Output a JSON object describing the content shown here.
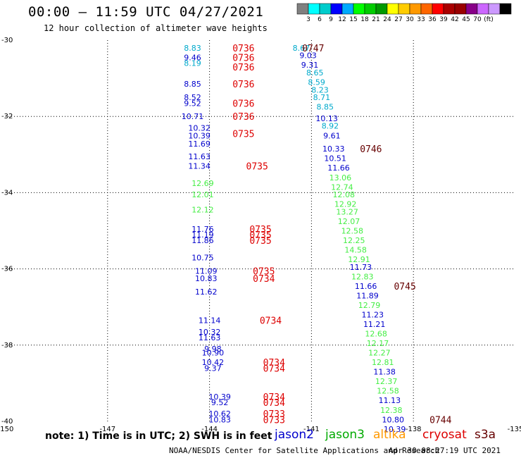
{
  "header": {
    "title": "00:00 – 11:59 UTC 04/27/2021",
    "subtitle": "12 hour collection of altimeter wave heights"
  },
  "note": "note: 1) Time is in UTC; 2) SWH is in feet",
  "satellites": [
    {
      "name": "jason2",
      "color": "#0000cc"
    },
    {
      "name": "jason3",
      "color": "#00aa00"
    },
    {
      "name": "altika",
      "color": "#ff9900"
    },
    {
      "name": "cryosat",
      "color": "#dd0000"
    },
    {
      "name": "s3a",
      "color": "#660000"
    }
  ],
  "footer": {
    "credit": "NOAA/NESDIS Center for Satellite Applications and Research",
    "timestamp": "Apr 30 08:27:19 UTC 2021"
  },
  "color_scale": {
    "colors": [
      "#808080",
      "#00ffff",
      "#00cccc",
      "#0000ff",
      "#00aaff",
      "#00ff00",
      "#00cc00",
      "#009900",
      "#ffff00",
      "#ffcc00",
      "#ff9900",
      "#ff6600",
      "#ff0000",
      "#aa0000",
      "#990000",
      "#880088",
      "#cc66ff",
      "#cc99ff",
      "#000000"
    ],
    "labels": [
      "3",
      "6",
      "9",
      "12",
      "15",
      "18",
      "21",
      "24",
      "27",
      "30",
      "33",
      "36",
      "39",
      "42",
      "45",
      "70",
      "(ft)"
    ]
  },
  "chart_data": {
    "type": "scatter",
    "xlim": [
      -150,
      -135
    ],
    "ylim": [
      -40,
      -30
    ],
    "x_ticks": [
      -150,
      -147,
      -144,
      -141,
      -138,
      -135
    ],
    "x_tick_labels": [
      "-150",
      "-147",
      "-144",
      "-141",
      "-138",
      "-135"
    ],
    "y_ticks": [
      -30,
      -32,
      -34,
      -36,
      -38,
      -40
    ],
    "y_tick_labels": [
      "-30",
      "-32",
      "-34",
      "-36",
      "-38",
      "-40"
    ],
    "value_labels": [
      {
        "x": -144.5,
        "y": -30.2,
        "text": "8.83",
        "color": "#00aacc"
      },
      {
        "x": -144.5,
        "y": -30.45,
        "text": "9.46",
        "color": "#0000cc"
      },
      {
        "x": -144.5,
        "y": -30.6,
        "text": "8.19",
        "color": "#00aacc"
      },
      {
        "x": -144.5,
        "y": -31.15,
        "text": "8.85",
        "color": "#0000cc"
      },
      {
        "x": -144.5,
        "y": -31.5,
        "text": "8.52",
        "color": "#0000cc"
      },
      {
        "x": -144.5,
        "y": -31.65,
        "text": "9.52",
        "color": "#0000cc"
      },
      {
        "x": -144.5,
        "y": -32.0,
        "text": "10.71",
        "color": "#0000cc"
      },
      {
        "x": -144.3,
        "y": -32.3,
        "text": "10.32",
        "color": "#0000cc"
      },
      {
        "x": -144.3,
        "y": -32.5,
        "text": "10.39",
        "color": "#0000cc"
      },
      {
        "x": -144.3,
        "y": -32.72,
        "text": "11.69",
        "color": "#0000cc"
      },
      {
        "x": -144.3,
        "y": -33.05,
        "text": "11.63",
        "color": "#0000cc"
      },
      {
        "x": -144.3,
        "y": -33.3,
        "text": "11.34",
        "color": "#0000cc"
      },
      {
        "x": -144.2,
        "y": -33.75,
        "text": "12.69",
        "color": "#44ee44"
      },
      {
        "x": -144.2,
        "y": -34.05,
        "text": "12.01",
        "color": "#44ee44"
      },
      {
        "x": -144.2,
        "y": -34.45,
        "text": "12.12",
        "color": "#44ee44"
      },
      {
        "x": -144.2,
        "y": -34.95,
        "text": "11.76",
        "color": "#0000cc"
      },
      {
        "x": -144.2,
        "y": -35.1,
        "text": "11.19",
        "color": "#0000cc"
      },
      {
        "x": -144.2,
        "y": -35.25,
        "text": "11.86",
        "color": "#0000cc"
      },
      {
        "x": -144.2,
        "y": -35.7,
        "text": "10.75",
        "color": "#0000cc"
      },
      {
        "x": -144.1,
        "y": -36.05,
        "text": "11.09",
        "color": "#0000cc"
      },
      {
        "x": -144.1,
        "y": -36.25,
        "text": "10.83",
        "color": "#0000cc"
      },
      {
        "x": -144.1,
        "y": -36.6,
        "text": "11.62",
        "color": "#0000cc"
      },
      {
        "x": -144.0,
        "y": -37.35,
        "text": "11.14",
        "color": "#0000cc"
      },
      {
        "x": -144.0,
        "y": -37.65,
        "text": "10.32",
        "color": "#0000cc"
      },
      {
        "x": -144.0,
        "y": -37.8,
        "text": "11.63",
        "color": "#0000cc"
      },
      {
        "x": -143.9,
        "y": -38.1,
        "text": "9.98",
        "color": "#0000cc"
      },
      {
        "x": -143.9,
        "y": -38.2,
        "text": "10.90",
        "color": "#0000cc"
      },
      {
        "x": -143.9,
        "y": -38.45,
        "text": "10.42",
        "color": "#0000cc"
      },
      {
        "x": -143.9,
        "y": -38.6,
        "text": "9.37",
        "color": "#0000cc"
      },
      {
        "x": -143.7,
        "y": -39.35,
        "text": "10.39",
        "color": "#0000cc"
      },
      {
        "x": -143.7,
        "y": -39.5,
        "text": "9.52",
        "color": "#0000cc"
      },
      {
        "x": -143.7,
        "y": -39.8,
        "text": "10.62",
        "color": "#0000cc"
      },
      {
        "x": -143.7,
        "y": -39.95,
        "text": "10.83",
        "color": "#0000cc"
      },
      {
        "x": -141.3,
        "y": -30.2,
        "text": "8.67",
        "color": "#00aacc"
      },
      {
        "x": -141.1,
        "y": -30.4,
        "text": "9.03",
        "color": "#0000cc"
      },
      {
        "x": -141.05,
        "y": -30.65,
        "text": "9.31",
        "color": "#0000cc"
      },
      {
        "x": -140.9,
        "y": -30.85,
        "text": "8.65",
        "color": "#00aacc"
      },
      {
        "x": -140.85,
        "y": -31.1,
        "text": "8.59",
        "color": "#00aacc"
      },
      {
        "x": -140.75,
        "y": -31.3,
        "text": "8.23",
        "color": "#00aacc"
      },
      {
        "x": -140.7,
        "y": -31.5,
        "text": "8.71",
        "color": "#00aacc"
      },
      {
        "x": -140.6,
        "y": -31.75,
        "text": "8.85",
        "color": "#00aacc"
      },
      {
        "x": -140.55,
        "y": -32.05,
        "text": "10.13",
        "color": "#0000cc"
      },
      {
        "x": -140.45,
        "y": -32.25,
        "text": "8.92",
        "color": "#00aacc"
      },
      {
        "x": -140.4,
        "y": -32.5,
        "text": "9.61",
        "color": "#0000cc"
      },
      {
        "x": -140.35,
        "y": -32.85,
        "text": "10.33",
        "color": "#0000cc"
      },
      {
        "x": -140.3,
        "y": -33.1,
        "text": "10.51",
        "color": "#0000cc"
      },
      {
        "x": -140.2,
        "y": -33.35,
        "text": "11.66",
        "color": "#0000cc"
      },
      {
        "x": -140.15,
        "y": -33.6,
        "text": "13.06",
        "color": "#44ee44"
      },
      {
        "x": -140.1,
        "y": -33.85,
        "text": "12.74",
        "color": "#44ee44"
      },
      {
        "x": -140.05,
        "y": -34.05,
        "text": "12.08",
        "color": "#44ee44"
      },
      {
        "x": -140.0,
        "y": -34.3,
        "text": "12.92",
        "color": "#44ee44"
      },
      {
        "x": -139.95,
        "y": -34.5,
        "text": "13.27",
        "color": "#44ee44"
      },
      {
        "x": -139.9,
        "y": -34.75,
        "text": "12.07",
        "color": "#44ee44"
      },
      {
        "x": -139.8,
        "y": -35.0,
        "text": "12.58",
        "color": "#44ee44"
      },
      {
        "x": -139.75,
        "y": -35.25,
        "text": "12.25",
        "color": "#44ee44"
      },
      {
        "x": -139.7,
        "y": -35.5,
        "text": "14.58",
        "color": "#44ee44"
      },
      {
        "x": -139.6,
        "y": -35.75,
        "text": "12.91",
        "color": "#44ee44"
      },
      {
        "x": -139.55,
        "y": -35.95,
        "text": "11.73",
        "color": "#0000cc"
      },
      {
        "x": -139.5,
        "y": -36.2,
        "text": "12.83",
        "color": "#44ee44"
      },
      {
        "x": -139.4,
        "y": -36.45,
        "text": "11.66",
        "color": "#0000cc"
      },
      {
        "x": -139.35,
        "y": -36.7,
        "text": "11.89",
        "color": "#0000cc"
      },
      {
        "x": -139.3,
        "y": -36.95,
        "text": "12.79",
        "color": "#44ee44"
      },
      {
        "x": -139.2,
        "y": -37.2,
        "text": "11.23",
        "color": "#0000cc"
      },
      {
        "x": -139.15,
        "y": -37.45,
        "text": "11.21",
        "color": "#0000cc"
      },
      {
        "x": -139.1,
        "y": -37.7,
        "text": "12.68",
        "color": "#44ee44"
      },
      {
        "x": -139.05,
        "y": -37.95,
        "text": "12.17",
        "color": "#44ee44"
      },
      {
        "x": -139.0,
        "y": -38.2,
        "text": "12.27",
        "color": "#44ee44"
      },
      {
        "x": -138.9,
        "y": -38.45,
        "text": "12.81",
        "color": "#44ee44"
      },
      {
        "x": -138.85,
        "y": -38.7,
        "text": "11.38",
        "color": "#0000cc"
      },
      {
        "x": -138.8,
        "y": -38.95,
        "text": "12.37",
        "color": "#44ee44"
      },
      {
        "x": -138.75,
        "y": -39.2,
        "text": "12.58",
        "color": "#44ee44"
      },
      {
        "x": -138.7,
        "y": -39.45,
        "text": "11.13",
        "color": "#0000cc"
      },
      {
        "x": -138.65,
        "y": -39.7,
        "text": "12.38",
        "color": "#44ee44"
      },
      {
        "x": -138.6,
        "y": -39.95,
        "text": "10.80",
        "color": "#0000cc"
      },
      {
        "x": -138.55,
        "y": -40.2,
        "text": "10.39",
        "color": "#0000cc"
      }
    ],
    "time_labels": [
      {
        "x": -143.0,
        "y": -30.2,
        "text": "0736",
        "color": "#dd0000"
      },
      {
        "x": -143.0,
        "y": -30.45,
        "text": "0736",
        "color": "#dd0000"
      },
      {
        "x": -143.0,
        "y": -30.7,
        "text": "0736",
        "color": "#dd0000"
      },
      {
        "x": -143.0,
        "y": -31.15,
        "text": "0736",
        "color": "#dd0000"
      },
      {
        "x": -143.0,
        "y": -31.65,
        "text": "0736",
        "color": "#dd0000"
      },
      {
        "x": -143.0,
        "y": -32.0,
        "text": "0736",
        "color": "#dd0000"
      },
      {
        "x": -143.0,
        "y": -32.45,
        "text": "0735",
        "color": "#dd0000"
      },
      {
        "x": -142.6,
        "y": -33.3,
        "text": "0735",
        "color": "#dd0000"
      },
      {
        "x": -142.5,
        "y": -34.95,
        "text": "0735",
        "color": "#dd0000"
      },
      {
        "x": -142.5,
        "y": -35.1,
        "text": "0735",
        "color": "#dd0000"
      },
      {
        "x": -142.5,
        "y": -35.25,
        "text": "0735",
        "color": "#dd0000"
      },
      {
        "x": -142.4,
        "y": -36.05,
        "text": "0735",
        "color": "#dd0000"
      },
      {
        "x": -142.4,
        "y": -36.25,
        "text": "0734",
        "color": "#dd0000"
      },
      {
        "x": -142.2,
        "y": -37.35,
        "text": "0734",
        "color": "#dd0000"
      },
      {
        "x": -142.1,
        "y": -38.45,
        "text": "0734",
        "color": "#dd0000"
      },
      {
        "x": -142.1,
        "y": -38.6,
        "text": "0734",
        "color": "#dd0000"
      },
      {
        "x": -142.1,
        "y": -39.35,
        "text": "0734",
        "color": "#dd0000"
      },
      {
        "x": -142.1,
        "y": -39.5,
        "text": "0734",
        "color": "#dd0000"
      },
      {
        "x": -142.1,
        "y": -39.8,
        "text": "0733",
        "color": "#dd0000"
      },
      {
        "x": -142.1,
        "y": -39.95,
        "text": "0733",
        "color": "#dd0000"
      },
      {
        "x": -140.95,
        "y": -30.2,
        "text": "0747",
        "color": "#660000"
      },
      {
        "x": -139.25,
        "y": -32.85,
        "text": "0746",
        "color": "#660000"
      },
      {
        "x": -138.25,
        "y": -36.45,
        "text": "0745",
        "color": "#660000"
      },
      {
        "x": -137.2,
        "y": -39.95,
        "text": "0744",
        "color": "#660000"
      }
    ]
  }
}
